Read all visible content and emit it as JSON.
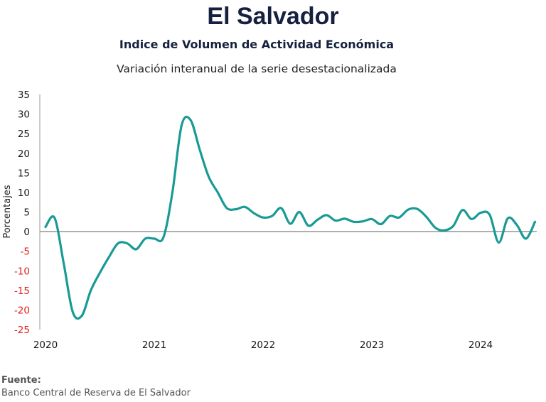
{
  "chart_data": {
    "type": "line",
    "title": "El Salvador",
    "subtitle": "Indice de Volumen de  Actividad Económica",
    "subtitle2": "Variación interanual de la serie desestacionalizada",
    "ylabel": "Porcentajes",
    "xlabel": "",
    "ylim": [
      -25,
      35
    ],
    "yticks": [
      35,
      30,
      25,
      20,
      15,
      10,
      5,
      0,
      -5,
      -10,
      -15,
      -20,
      -25
    ],
    "xticks": [
      "2020",
      "2021",
      "2022",
      "2023",
      "2024"
    ],
    "grid": false,
    "line_color": "#1a9a95",
    "negative_tick_color": "#e02020",
    "series": [
      {
        "x": [
          "2020-01",
          "2020-02",
          "2020-03",
          "2020-04",
          "2020-05",
          "2020-06",
          "2020-07",
          "2020-08",
          "2020-09",
          "2020-10",
          "2020-11",
          "2020-12",
          "2021-01",
          "2021-02",
          "2021-03",
          "2021-04",
          "2021-05",
          "2021-06",
          "2021-07",
          "2021-08",
          "2021-09",
          "2021-10",
          "2021-11",
          "2021-12",
          "2022-01",
          "2022-02",
          "2022-03",
          "2022-04",
          "2022-05",
          "2022-06",
          "2022-07",
          "2022-08",
          "2022-09",
          "2022-10",
          "2022-11",
          "2022-12",
          "2023-01",
          "2023-02",
          "2023-03",
          "2023-04",
          "2023-05",
          "2023-06",
          "2023-07",
          "2023-08",
          "2023-09",
          "2023-10",
          "2023-11",
          "2023-12",
          "2024-01",
          "2024-02",
          "2024-03",
          "2024-04",
          "2024-05",
          "2024-06",
          "2024-07"
        ],
        "values": [
          1.2,
          3.5,
          -8.0,
          -20.5,
          -21.5,
          -15.0,
          -10.5,
          -6.5,
          -3.0,
          -3.0,
          -4.5,
          -1.8,
          -1.8,
          -1.5,
          10.0,
          27.0,
          28.5,
          21.0,
          14.0,
          10.0,
          6.0,
          5.7,
          6.3,
          4.7,
          3.6,
          4.0,
          6.0,
          2.0,
          5.0,
          1.5,
          3.0,
          4.2,
          2.8,
          3.3,
          2.5,
          2.6,
          3.2,
          1.9,
          4.0,
          3.6,
          5.6,
          5.8,
          3.8,
          1.0,
          0.3,
          1.5,
          5.5,
          3.2,
          4.8,
          4.3,
          -2.8,
          3.4,
          1.7,
          -1.8,
          2.5
        ]
      }
    ]
  },
  "source": {
    "label": "Fuente:",
    "text": "Banco Central de Reserva de El Salvador"
  }
}
